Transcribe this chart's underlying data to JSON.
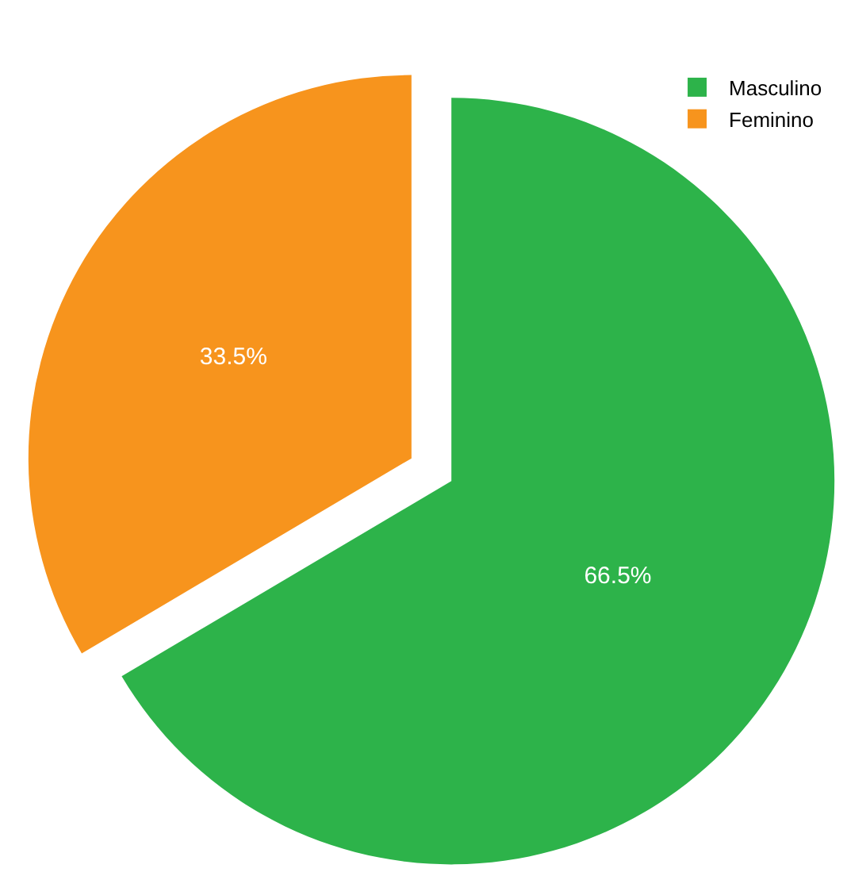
{
  "chart_data": {
    "type": "pie",
    "categories": [
      "Masculino",
      "Feminino"
    ],
    "values": [
      66.5,
      33.5
    ],
    "colors": [
      "#2db34a",
      "#f7941d"
    ],
    "value_labels": [
      "66.5%",
      "33.5%"
    ],
    "legend": "top right"
  }
}
